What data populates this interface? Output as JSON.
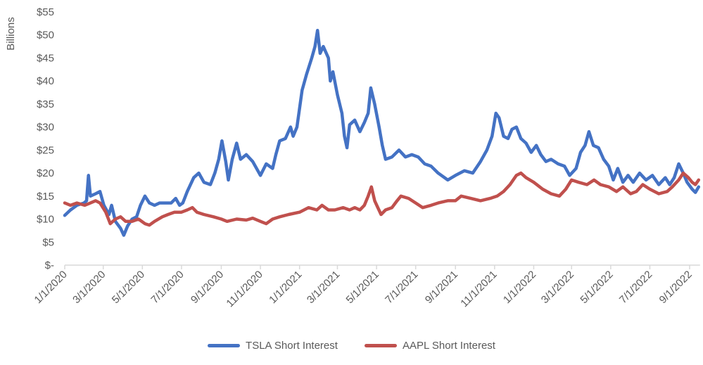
{
  "chart_data": {
    "type": "line",
    "title": "",
    "xlabel": "",
    "ylabel": "Billions",
    "ylim": [
      0,
      55
    ],
    "xlim": [
      "2020-01-01",
      "2022-09-15"
    ],
    "grid": false,
    "legend_position": "bottom",
    "y_ticks": [
      {
        "value": 0,
        "label": "$-"
      },
      {
        "value": 5,
        "label": "$5"
      },
      {
        "value": 10,
        "label": "$10"
      },
      {
        "value": 15,
        "label": "$15"
      },
      {
        "value": 20,
        "label": "$20"
      },
      {
        "value": 25,
        "label": "$25"
      },
      {
        "value": 30,
        "label": "$30"
      },
      {
        "value": 35,
        "label": "$35"
      },
      {
        "value": 40,
        "label": "$40"
      },
      {
        "value": 45,
        "label": "$45"
      },
      {
        "value": 50,
        "label": "$50"
      },
      {
        "value": 55,
        "label": "$55"
      }
    ],
    "x_ticks": [
      {
        "date": "2020-01-01",
        "label": "1/1/2020"
      },
      {
        "date": "2020-03-01",
        "label": "3/1/2020"
      },
      {
        "date": "2020-05-01",
        "label": "5/1/2020"
      },
      {
        "date": "2020-07-01",
        "label": "7/1/2020"
      },
      {
        "date": "2020-09-01",
        "label": "9/1/2020"
      },
      {
        "date": "2020-11-01",
        "label": "11/1/2020"
      },
      {
        "date": "2021-01-01",
        "label": "1/1/2021"
      },
      {
        "date": "2021-03-01",
        "label": "3/1/2021"
      },
      {
        "date": "2021-05-01",
        "label": "5/1/2021"
      },
      {
        "date": "2021-07-01",
        "label": "7/1/2021"
      },
      {
        "date": "2021-09-01",
        "label": "9/1/2021"
      },
      {
        "date": "2021-11-01",
        "label": "11/1/2021"
      },
      {
        "date": "2022-01-01",
        "label": "1/1/2022"
      },
      {
        "date": "2022-03-01",
        "label": "3/1/2022"
      },
      {
        "date": "2022-05-01",
        "label": "5/1/2022"
      },
      {
        "date": "2022-07-01",
        "label": "7/1/2022"
      },
      {
        "date": "2022-09-01",
        "label": "9/1/2022"
      }
    ],
    "series": [
      {
        "name": "TSLA Short Interest",
        "color": "#4472C4",
        "points": [
          [
            "2020-01-01",
            10.8
          ],
          [
            "2020-01-10",
            12.0
          ],
          [
            "2020-01-20",
            13.0
          ],
          [
            "2020-01-31",
            13.5
          ],
          [
            "2020-02-04",
            14.0
          ],
          [
            "2020-02-07",
            19.5
          ],
          [
            "2020-02-10",
            15.0
          ],
          [
            "2020-02-18",
            15.5
          ],
          [
            "2020-02-25",
            16.0
          ],
          [
            "2020-03-02",
            13.0
          ],
          [
            "2020-03-10",
            11.0
          ],
          [
            "2020-03-14",
            13.0
          ],
          [
            "2020-03-20",
            9.5
          ],
          [
            "2020-03-28",
            8.0
          ],
          [
            "2020-04-02",
            6.5
          ],
          [
            "2020-04-08",
            8.5
          ],
          [
            "2020-04-15",
            10.0
          ],
          [
            "2020-04-22",
            10.5
          ],
          [
            "2020-04-28",
            13.0
          ],
          [
            "2020-05-05",
            15.0
          ],
          [
            "2020-05-12",
            13.5
          ],
          [
            "2020-05-20",
            13.0
          ],
          [
            "2020-05-28",
            13.5
          ],
          [
            "2020-06-05",
            13.5
          ],
          [
            "2020-06-15",
            13.5
          ],
          [
            "2020-06-22",
            14.5
          ],
          [
            "2020-06-28",
            13.0
          ],
          [
            "2020-07-03",
            13.5
          ],
          [
            "2020-07-10",
            16.0
          ],
          [
            "2020-07-20",
            19.0
          ],
          [
            "2020-07-28",
            20.0
          ],
          [
            "2020-08-05",
            18.0
          ],
          [
            "2020-08-15",
            17.5
          ],
          [
            "2020-08-22",
            20.0
          ],
          [
            "2020-08-28",
            23.0
          ],
          [
            "2020-09-02",
            27.0
          ],
          [
            "2020-09-08",
            22.5
          ],
          [
            "2020-09-12",
            18.5
          ],
          [
            "2020-09-18",
            23.0
          ],
          [
            "2020-09-25",
            26.5
          ],
          [
            "2020-10-01",
            23.0
          ],
          [
            "2020-10-10",
            24.0
          ],
          [
            "2020-10-20",
            22.5
          ],
          [
            "2020-11-01",
            19.5
          ],
          [
            "2020-11-10",
            22.0
          ],
          [
            "2020-11-20",
            21.0
          ],
          [
            "2020-11-25",
            24.0
          ],
          [
            "2020-12-01",
            27.0
          ],
          [
            "2020-12-10",
            27.5
          ],
          [
            "2020-12-18",
            30.0
          ],
          [
            "2020-12-22",
            28.0
          ],
          [
            "2020-12-28",
            30.0
          ],
          [
            "2021-01-05",
            38.0
          ],
          [
            "2021-01-12",
            41.5
          ],
          [
            "2021-01-20",
            45.0
          ],
          [
            "2021-01-25",
            47.5
          ],
          [
            "2021-01-29",
            51.0
          ],
          [
            "2021-02-02",
            46.0
          ],
          [
            "2021-02-07",
            47.5
          ],
          [
            "2021-02-15",
            45.0
          ],
          [
            "2021-02-18",
            40.0
          ],
          [
            "2021-02-22",
            42.0
          ],
          [
            "2021-03-01",
            37.0
          ],
          [
            "2021-03-08",
            33.0
          ],
          [
            "2021-03-12",
            28.0
          ],
          [
            "2021-03-16",
            25.5
          ],
          [
            "2021-03-20",
            30.5
          ],
          [
            "2021-03-28",
            31.5
          ],
          [
            "2021-04-05",
            29.0
          ],
          [
            "2021-04-12",
            31.0
          ],
          [
            "2021-04-18",
            33.0
          ],
          [
            "2021-04-22",
            38.5
          ],
          [
            "2021-04-28",
            35.0
          ],
          [
            "2021-05-05",
            30.0
          ],
          [
            "2021-05-10",
            26.0
          ],
          [
            "2021-05-15",
            23.0
          ],
          [
            "2021-05-25",
            23.5
          ],
          [
            "2021-06-05",
            25.0
          ],
          [
            "2021-06-15",
            23.5
          ],
          [
            "2021-06-25",
            24.0
          ],
          [
            "2021-07-05",
            23.5
          ],
          [
            "2021-07-15",
            22.0
          ],
          [
            "2021-07-25",
            21.5
          ],
          [
            "2021-08-05",
            20.0
          ],
          [
            "2021-08-20",
            18.5
          ],
          [
            "2021-09-01",
            19.5
          ],
          [
            "2021-09-15",
            20.5
          ],
          [
            "2021-09-28",
            20.0
          ],
          [
            "2021-10-10",
            22.5
          ],
          [
            "2021-10-20",
            25.0
          ],
          [
            "2021-10-28",
            28.0
          ],
          [
            "2021-11-03",
            33.0
          ],
          [
            "2021-11-08",
            32.0
          ],
          [
            "2021-11-15",
            28.0
          ],
          [
            "2021-11-22",
            27.5
          ],
          [
            "2021-11-28",
            29.5
          ],
          [
            "2021-12-05",
            30.0
          ],
          [
            "2021-12-12",
            27.5
          ],
          [
            "2021-12-20",
            26.5
          ],
          [
            "2021-12-28",
            24.5
          ],
          [
            "2022-01-05",
            26.0
          ],
          [
            "2022-01-12",
            24.0
          ],
          [
            "2022-01-20",
            22.5
          ],
          [
            "2022-01-28",
            23.0
          ],
          [
            "2022-02-08",
            22.0
          ],
          [
            "2022-02-18",
            21.5
          ],
          [
            "2022-02-26",
            19.5
          ],
          [
            "2022-03-08",
            21.0
          ],
          [
            "2022-03-15",
            24.5
          ],
          [
            "2022-03-22",
            26.0
          ],
          [
            "2022-03-28",
            29.0
          ],
          [
            "2022-04-04",
            26.0
          ],
          [
            "2022-04-12",
            25.5
          ],
          [
            "2022-04-20",
            23.0
          ],
          [
            "2022-04-28",
            21.5
          ],
          [
            "2022-05-05",
            18.5
          ],
          [
            "2022-05-12",
            21.0
          ],
          [
            "2022-05-20",
            18.0
          ],
          [
            "2022-05-28",
            19.5
          ],
          [
            "2022-06-05",
            18.0
          ],
          [
            "2022-06-15",
            20.0
          ],
          [
            "2022-06-25",
            18.5
          ],
          [
            "2022-07-05",
            19.5
          ],
          [
            "2022-07-15",
            17.5
          ],
          [
            "2022-07-25",
            19.0
          ],
          [
            "2022-08-01",
            17.5
          ],
          [
            "2022-08-08",
            19.0
          ],
          [
            "2022-08-15",
            22.0
          ],
          [
            "2022-08-22",
            20.0
          ],
          [
            "2022-08-28",
            18.0
          ],
          [
            "2022-09-05",
            16.5
          ],
          [
            "2022-09-10",
            15.8
          ],
          [
            "2022-09-15",
            17.0
          ]
        ]
      },
      {
        "name": "AAPL Short Interest",
        "color": "#C0504D",
        "points": [
          [
            "2020-01-01",
            13.5
          ],
          [
            "2020-01-10",
            13.0
          ],
          [
            "2020-01-20",
            13.5
          ],
          [
            "2020-02-01",
            13.0
          ],
          [
            "2020-02-10",
            13.5
          ],
          [
            "2020-02-18",
            14.0
          ],
          [
            "2020-02-25",
            13.5
          ],
          [
            "2020-03-05",
            11.5
          ],
          [
            "2020-03-12",
            9.0
          ],
          [
            "2020-03-20",
            10.0
          ],
          [
            "2020-03-28",
            10.5
          ],
          [
            "2020-04-05",
            9.5
          ],
          [
            "2020-04-15",
            9.5
          ],
          [
            "2020-04-25",
            10.0
          ],
          [
            "2020-05-05",
            9.0
          ],
          [
            "2020-05-12",
            8.7
          ],
          [
            "2020-05-20",
            9.5
          ],
          [
            "2020-06-01",
            10.5
          ],
          [
            "2020-06-10",
            11.0
          ],
          [
            "2020-06-20",
            11.5
          ],
          [
            "2020-07-01",
            11.5
          ],
          [
            "2020-07-10",
            12.0
          ],
          [
            "2020-07-18",
            12.5
          ],
          [
            "2020-07-25",
            11.5
          ],
          [
            "2020-08-05",
            11.0
          ],
          [
            "2020-08-20",
            10.5
          ],
          [
            "2020-09-01",
            10.0
          ],
          [
            "2020-09-10",
            9.5
          ],
          [
            "2020-09-25",
            10.0
          ],
          [
            "2020-10-10",
            9.8
          ],
          [
            "2020-10-20",
            10.2
          ],
          [
            "2020-11-01",
            9.5
          ],
          [
            "2020-11-10",
            9.0
          ],
          [
            "2020-11-20",
            10.0
          ],
          [
            "2020-12-01",
            10.5
          ],
          [
            "2020-12-15",
            11.0
          ],
          [
            "2021-01-01",
            11.5
          ],
          [
            "2021-01-15",
            12.5
          ],
          [
            "2021-01-28",
            12.0
          ],
          [
            "2021-02-05",
            13.0
          ],
          [
            "2021-02-15",
            12.0
          ],
          [
            "2021-02-25",
            12.0
          ],
          [
            "2021-03-10",
            12.5
          ],
          [
            "2021-03-20",
            12.0
          ],
          [
            "2021-03-28",
            12.5
          ],
          [
            "2021-04-05",
            12.0
          ],
          [
            "2021-04-12",
            13.0
          ],
          [
            "2021-04-18",
            15.0
          ],
          [
            "2021-04-23",
            17.0
          ],
          [
            "2021-04-28",
            14.0
          ],
          [
            "2021-05-03",
            12.5
          ],
          [
            "2021-05-08",
            11.0
          ],
          [
            "2021-05-15",
            12.0
          ],
          [
            "2021-05-25",
            12.5
          ],
          [
            "2021-06-02",
            14.0
          ],
          [
            "2021-06-08",
            15.0
          ],
          [
            "2021-06-20",
            14.5
          ],
          [
            "2021-07-01",
            13.5
          ],
          [
            "2021-07-12",
            12.5
          ],
          [
            "2021-07-25",
            13.0
          ],
          [
            "2021-08-05",
            13.5
          ],
          [
            "2021-08-20",
            14.0
          ],
          [
            "2021-09-01",
            14.0
          ],
          [
            "2021-09-10",
            15.0
          ],
          [
            "2021-09-25",
            14.5
          ],
          [
            "2021-10-10",
            14.0
          ],
          [
            "2021-10-25",
            14.5
          ],
          [
            "2021-11-05",
            15.0
          ],
          [
            "2021-11-15",
            16.0
          ],
          [
            "2021-11-25",
            17.5
          ],
          [
            "2021-12-05",
            19.5
          ],
          [
            "2021-12-12",
            20.0
          ],
          [
            "2021-12-20",
            19.0
          ],
          [
            "2022-01-01",
            18.0
          ],
          [
            "2022-01-15",
            16.5
          ],
          [
            "2022-01-28",
            15.5
          ],
          [
            "2022-02-10",
            15.0
          ],
          [
            "2022-02-20",
            16.5
          ],
          [
            "2022-03-01",
            18.5
          ],
          [
            "2022-03-12",
            18.0
          ],
          [
            "2022-03-25",
            17.5
          ],
          [
            "2022-04-05",
            18.5
          ],
          [
            "2022-04-15",
            17.5
          ],
          [
            "2022-04-28",
            17.0
          ],
          [
            "2022-05-10",
            16.0
          ],
          [
            "2022-05-20",
            17.0
          ],
          [
            "2022-06-01",
            15.5
          ],
          [
            "2022-06-10",
            16.0
          ],
          [
            "2022-06-20",
            17.5
          ],
          [
            "2022-07-01",
            16.5
          ],
          [
            "2022-07-15",
            15.5
          ],
          [
            "2022-07-28",
            16.0
          ],
          [
            "2022-08-05",
            17.0
          ],
          [
            "2022-08-15",
            18.5
          ],
          [
            "2022-08-22",
            20.0
          ],
          [
            "2022-08-30",
            19.0
          ],
          [
            "2022-09-05",
            18.0
          ],
          [
            "2022-09-10",
            17.5
          ],
          [
            "2022-09-15",
            18.5
          ]
        ]
      }
    ]
  }
}
